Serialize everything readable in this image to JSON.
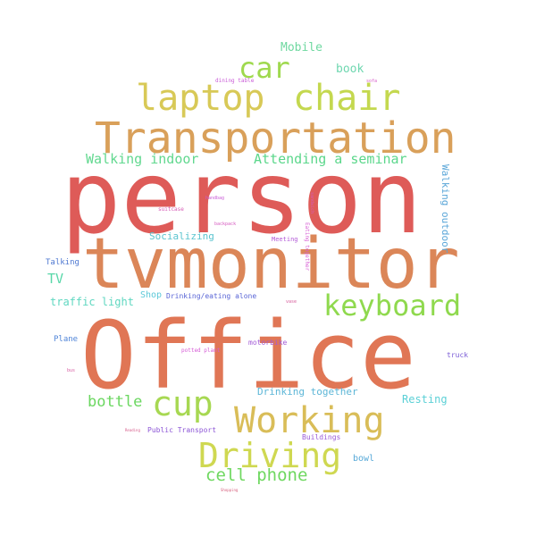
{
  "words": [
    {
      "text": "person",
      "color": "#de5b58"
    },
    {
      "text": "Office",
      "color": "#e07655"
    },
    {
      "text": "tvmonitor",
      "color": "#db8658"
    },
    {
      "text": "Transportation",
      "color": "#d9a05a"
    },
    {
      "text": "laptop",
      "color": "#d8c957"
    },
    {
      "text": "chair",
      "color": "#c4d84f"
    },
    {
      "text": "car",
      "color": "#9fd94e"
    },
    {
      "text": "keyboard",
      "color": "#8fd94e"
    },
    {
      "text": "Working",
      "color": "#d9bd58"
    },
    {
      "text": "Driving",
      "color": "#cfd851"
    },
    {
      "text": "cup",
      "color": "#a7d852"
    },
    {
      "text": "cell phone",
      "color": "#6fd860"
    },
    {
      "text": "bottle",
      "color": "#6bd760"
    },
    {
      "text": "Attending a seminar",
      "color": "#5bd78b"
    },
    {
      "text": "Walking indoor",
      "color": "#61d88f"
    },
    {
      "text": "Mobile",
      "color": "#6fd8a0"
    },
    {
      "text": "book",
      "color": "#6fd7b0"
    },
    {
      "text": "TV",
      "color": "#59d7a9"
    },
    {
      "text": "traffic light",
      "color": "#5fd7c0"
    },
    {
      "text": "Socializing",
      "color": "#5bc4cf"
    },
    {
      "text": "Shop",
      "color": "#5bc8d8"
    },
    {
      "text": "Walking outdoor",
      "color": "#5aa6d8"
    },
    {
      "text": "Drinking together",
      "color": "#5cb6d7"
    },
    {
      "text": "Resting",
      "color": "#5bd0d6"
    },
    {
      "text": "bowl",
      "color": "#58a9d8"
    },
    {
      "text": "Talking",
      "color": "#4f79d1"
    },
    {
      "text": "Plane",
      "color": "#4f84d8"
    },
    {
      "text": "Drinking/eating alone",
      "color": "#5965d6"
    },
    {
      "text": "Public Transport",
      "color": "#8c55d6"
    },
    {
      "text": "Buildings",
      "color": "#9a5bd8"
    },
    {
      "text": "truck",
      "color": "#7a5bd6"
    },
    {
      "text": "motorbike",
      "color": "#a35bd7"
    },
    {
      "text": "Meeting",
      "color": "#b35bd7"
    },
    {
      "text": "Eating together",
      "color": "#d65bd3"
    },
    {
      "text": "potted plant",
      "color": "#d65bd6"
    },
    {
      "text": "dining table",
      "color": "#c95bd7"
    },
    {
      "text": "sofa",
      "color": "#d65bc8"
    },
    {
      "text": "suitcase",
      "color": "#d65bb6"
    },
    {
      "text": "handbag",
      "color": "#c95bd6"
    },
    {
      "text": "sandwich",
      "color": "#d65bb0"
    },
    {
      "text": "backpack",
      "color": "#d65bc0"
    },
    {
      "text": "vase",
      "color": "#d65b9b"
    },
    {
      "text": "bus",
      "color": "#d65ba0"
    },
    {
      "text": "Reading",
      "color": "#d65b8a"
    },
    {
      "text": "Shopping",
      "color": "#d65b7a"
    }
  ]
}
